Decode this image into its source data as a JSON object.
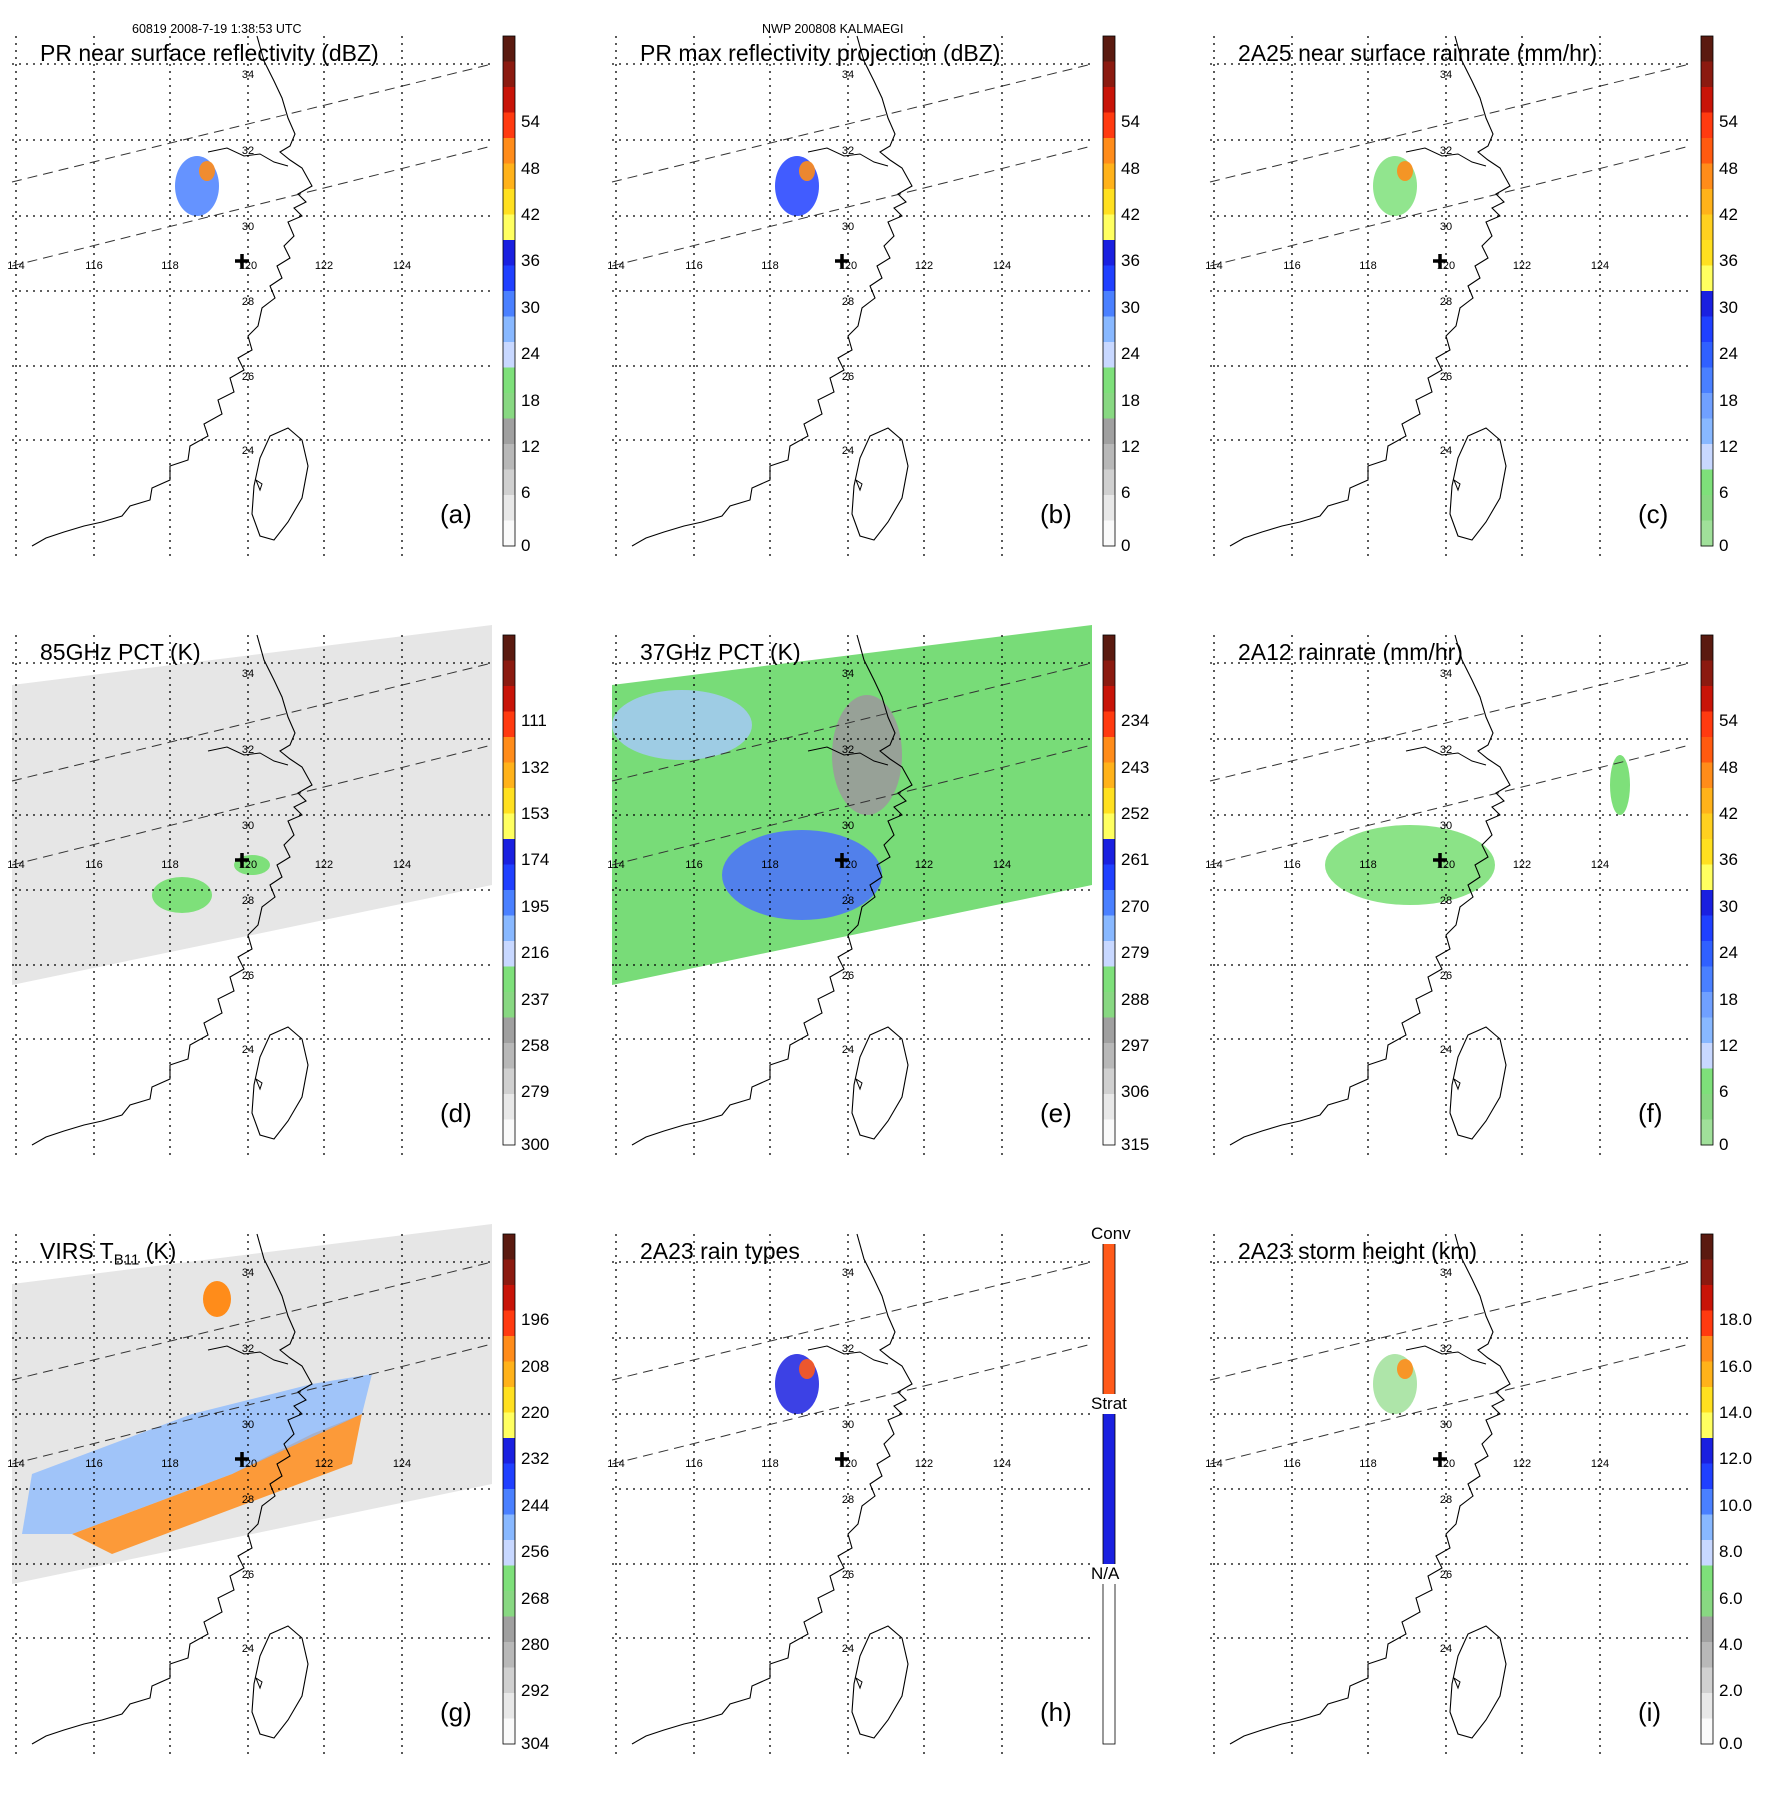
{
  "header": {
    "left": "60819 2008-7-19 1:38:53 UTC",
    "center": "NWP 200808 KALMAEGI"
  },
  "grid": {
    "lon_labels": [
      "114",
      "116",
      "118",
      "120",
      "122",
      "124"
    ],
    "lat_labels": [
      "34",
      "32",
      "30",
      "28",
      "26",
      "24"
    ]
  },
  "panels": [
    {
      "id": "a",
      "title": "PR near surface reflectivity (dBZ)",
      "label": "(a)",
      "ticks": [
        "54",
        "48",
        "42",
        "36",
        "30",
        "24",
        "18",
        "12",
        "6",
        "0"
      ],
      "colors": [
        "#5a1a10",
        "#8b1a10",
        "#c81408",
        "#ff3a10",
        "#ff8c1a",
        "#ffb21a",
        "#ffe020",
        "#ffff60",
        "#1a20e0",
        "#2040ff",
        "#4a80ff",
        "#88b8ff",
        "#c8d8ff",
        "#7ee07a",
        "#88d882",
        "#a0a0a0",
        "#b8b8b8",
        "#d0d0d0",
        "#e8e8e8",
        "#fafafa"
      ]
    },
    {
      "id": "b",
      "title": "PR max reflectivity projection (dBZ)",
      "label": "(b)",
      "ticks": [
        "54",
        "48",
        "42",
        "36",
        "30",
        "24",
        "18",
        "12",
        "6",
        "0"
      ],
      "colors": [
        "#5a1a10",
        "#8b1a10",
        "#c81408",
        "#ff3a10",
        "#ff8c1a",
        "#ffb21a",
        "#ffe020",
        "#ffff60",
        "#1a20e0",
        "#2040ff",
        "#4a80ff",
        "#88b8ff",
        "#c8d8ff",
        "#7ee07a",
        "#88d882",
        "#a0a0a0",
        "#b8b8b8",
        "#d0d0d0",
        "#e8e8e8",
        "#fafafa"
      ]
    },
    {
      "id": "c",
      "title": "2A25 near surface rainrate (mm/hr)",
      "label": "(c)",
      "ticks": [
        "54",
        "48",
        "42",
        "36",
        "30",
        "24",
        "18",
        "12",
        "6",
        "0"
      ],
      "colors": [
        "#5a1a10",
        "#8b1a10",
        "#c81408",
        "#ff3a10",
        "#ff5a10",
        "#ff8c1a",
        "#ffb21a",
        "#ffd020",
        "#ffe020",
        "#ffff60",
        "#1a20e0",
        "#2040ff",
        "#3060ff",
        "#4a80ff",
        "#70a0ff",
        "#88b8ff",
        "#c8d8ff",
        "#7ee07a",
        "#88d882",
        "#a0e09a"
      ]
    },
    {
      "id": "d",
      "title": "85GHz PCT (K)",
      "label": "(d)",
      "ticks": [
        "111",
        "132",
        "153",
        "174",
        "195",
        "216",
        "237",
        "258",
        "279",
        "300"
      ],
      "colors": [
        "#5a1a10",
        "#8b1a10",
        "#c81408",
        "#ff3a10",
        "#ff8c1a",
        "#ffb21a",
        "#ffe020",
        "#ffff60",
        "#1a20e0",
        "#2040ff",
        "#4a80ff",
        "#88b8ff",
        "#c8d8ff",
        "#7ee07a",
        "#88d882",
        "#a0a0a0",
        "#b8b8b8",
        "#d0d0d0",
        "#e8e8e8",
        "#fafafa"
      ]
    },
    {
      "id": "e",
      "title": "37GHz PCT (K)",
      "label": "(e)",
      "ticks": [
        "234",
        "243",
        "252",
        "261",
        "270",
        "279",
        "288",
        "297",
        "306",
        "315"
      ],
      "colors": [
        "#5a1a10",
        "#8b1a10",
        "#c81408",
        "#ff3a10",
        "#ff8c1a",
        "#ffb21a",
        "#ffe020",
        "#ffff60",
        "#1a20e0",
        "#2040ff",
        "#4a80ff",
        "#88b8ff",
        "#c8d8ff",
        "#7ee07a",
        "#88d882",
        "#a0a0a0",
        "#b8b8b8",
        "#d0d0d0",
        "#e8e8e8",
        "#fafafa"
      ]
    },
    {
      "id": "f",
      "title": "2A12 rainrate (mm/hr)",
      "label": "(f)",
      "ticks": [
        "54",
        "48",
        "42",
        "36",
        "30",
        "24",
        "18",
        "12",
        "6",
        "0"
      ],
      "colors": [
        "#5a1a10",
        "#8b1a10",
        "#c81408",
        "#ff3a10",
        "#ff5a10",
        "#ff8c1a",
        "#ffb21a",
        "#ffd020",
        "#ffe020",
        "#ffff60",
        "#1a20e0",
        "#2040ff",
        "#3060ff",
        "#4a80ff",
        "#70a0ff",
        "#88b8ff",
        "#c8d8ff",
        "#7ee07a",
        "#88d882",
        "#a0e09a"
      ]
    },
    {
      "id": "g",
      "title": "VIRS T",
      "title_sub": "B11",
      "title_tail": " (K)",
      "label": "(g)",
      "ticks": [
        "196",
        "208",
        "220",
        "232",
        "244",
        "256",
        "268",
        "280",
        "292",
        "304"
      ],
      "colors": [
        "#5a1a10",
        "#8b1a10",
        "#c81408",
        "#ff3a10",
        "#ff8c1a",
        "#ffb21a",
        "#ffe020",
        "#ffff60",
        "#1a20e0",
        "#2040ff",
        "#4a80ff",
        "#88b8ff",
        "#c8d8ff",
        "#7ee07a",
        "#88d882",
        "#a0a0a0",
        "#b8b8b8",
        "#d0d0d0",
        "#e8e8e8",
        "#fafafa"
      ]
    },
    {
      "id": "h",
      "title": "2A23 rain types",
      "label": "(h)",
      "ticks": [
        "Conv",
        "Strat",
        "N/A"
      ],
      "colors": [
        "#ff5a1a",
        "#1a20e0",
        "#ffffff"
      ]
    },
    {
      "id": "i",
      "title": "2A23 storm height (km)",
      "label": "(i)",
      "ticks": [
        "18.0",
        "16.0",
        "14.0",
        "12.0",
        "10.0",
        "8.0",
        "6.0",
        "4.0",
        "2.0",
        "0.0"
      ],
      "colors": [
        "#5a1a10",
        "#8b1a10",
        "#c81408",
        "#ff3a10",
        "#ff8c1a",
        "#ffb21a",
        "#ffe020",
        "#ffff60",
        "#1a20e0",
        "#2040ff",
        "#4a80ff",
        "#88b8ff",
        "#c8d8ff",
        "#7ee07a",
        "#88d882",
        "#a0a0a0",
        "#b8b8b8",
        "#d0d0d0",
        "#e8e8e8",
        "#fafafa"
      ]
    }
  ]
}
